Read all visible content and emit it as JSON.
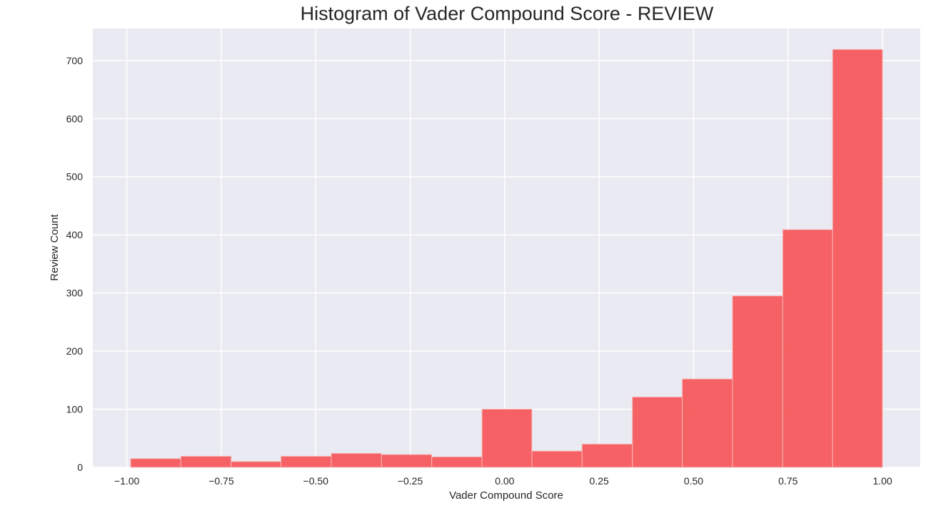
{
  "chart_data": {
    "type": "bar",
    "title": "Histogram of Vader Compound Score - REVIEW",
    "xlabel": "Vader Compound Score",
    "ylabel": "Review Count",
    "xlim": [
      -1.09,
      1.1
    ],
    "ylim": [
      0,
      755
    ],
    "xticks": [
      -1.0,
      -0.75,
      -0.5,
      -0.25,
      0.0,
      0.25,
      0.5,
      0.75,
      1.0
    ],
    "xtick_labels": [
      "−1.00",
      "−0.75",
      "−0.50",
      "−0.25",
      "0.00",
      "0.25",
      "0.50",
      "0.75",
      "1.00"
    ],
    "yticks": [
      0,
      100,
      200,
      300,
      400,
      500,
      600,
      700
    ],
    "ytick_labels": [
      "0",
      "100",
      "200",
      "300",
      "400",
      "500",
      "600",
      "700"
    ],
    "bin_edges": [
      -0.99,
      -0.857,
      -0.724,
      -0.592,
      -0.459,
      -0.326,
      -0.193,
      -0.06,
      0.072,
      0.205,
      0.338,
      0.47,
      0.603,
      0.736,
      0.868,
      1.0
    ],
    "values": [
      15,
      19,
      10,
      19,
      24,
      22,
      18,
      100,
      28,
      40,
      121,
      152,
      295,
      409,
      719
    ],
    "grid": true,
    "bar_color": "#f65a5c",
    "background_color": "#eaeaf2",
    "grid_color": "#ffffff"
  }
}
